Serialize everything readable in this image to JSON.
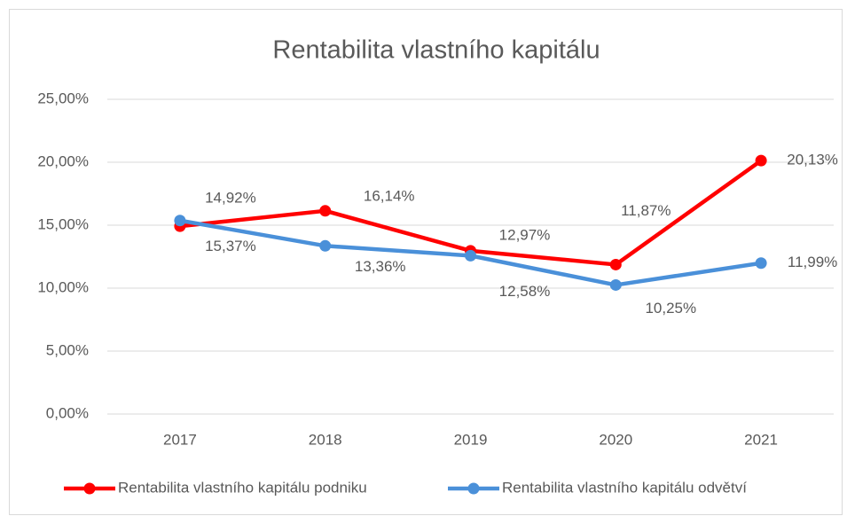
{
  "chart_data": {
    "type": "line",
    "title": "Rentabilita vlastního kapitálu",
    "categories": [
      "2017",
      "2018",
      "2019",
      "2020",
      "2021"
    ],
    "series": [
      {
        "name": "Rentabilita vlastního kapitálu podniku",
        "color": "#ff0000",
        "values": [
          14.92,
          16.14,
          12.97,
          11.87,
          20.13
        ],
        "value_labels": [
          "14,92%",
          "16,14%",
          "12,97%",
          "11,87%",
          "20,13%"
        ]
      },
      {
        "name": "Rentabilita vlastního kapitálu odvětví",
        "color": "#4a90d9",
        "values": [
          15.37,
          13.36,
          12.58,
          10.25,
          11.99
        ],
        "value_labels": [
          "15,37%",
          "13,36%",
          "12,58%",
          "10,25%",
          "11,99%"
        ]
      }
    ],
    "ylim": [
      0,
      25
    ],
    "yticks": [
      {
        "value": 0,
        "label": "0,00%"
      },
      {
        "value": 5,
        "label": "5,00%"
      },
      {
        "value": 10,
        "label": "10,00%"
      },
      {
        "value": 15,
        "label": "15,00%"
      },
      {
        "value": 20,
        "label": "20,00%"
      },
      {
        "value": 25,
        "label": "25,00%"
      }
    ],
    "grid": true,
    "legend": "bottom"
  }
}
